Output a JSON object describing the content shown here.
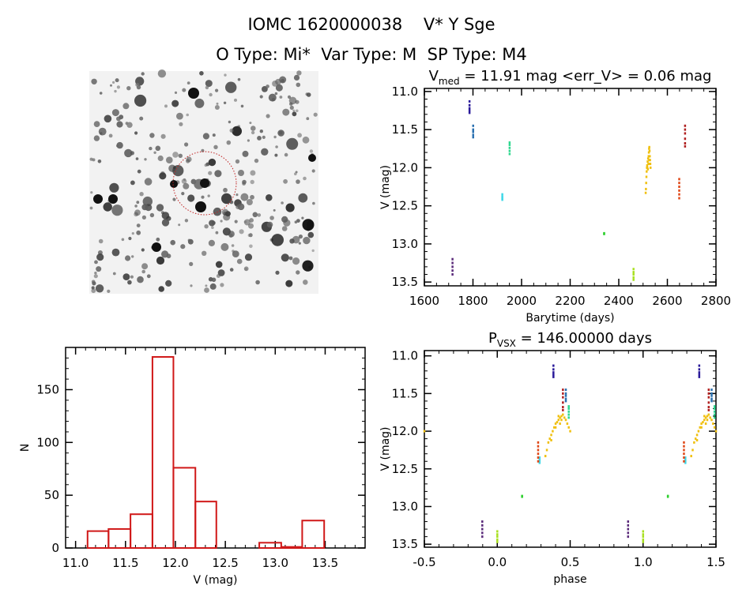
{
  "header": {
    "title": "IOMC 1620000038    V* Y Sge",
    "subtitle": "O Type: Mi*  Var Type: M  SP Type: M4"
  },
  "image_panel": {
    "description_visible": "greyscale star field finder chart with red dashed circle around target",
    "circle_color": "#c02020"
  },
  "chart_data": [
    {
      "type": "scatter",
      "title_main": "V",
      "title_sub": "med",
      "title_rest": " = 11.91 mag <err_V> = 0.06 mag",
      "xlabel": "Barytime (days)",
      "ylabel": "V (mag)",
      "xlim": [
        1600,
        2800
      ],
      "ylim": [
        13.55,
        10.96
      ],
      "y_reversed": true,
      "xticks": [
        1600,
        1800,
        2000,
        2200,
        2400,
        2600,
        2800
      ],
      "xtick_labels": [
        "1600",
        "1800",
        "2000",
        "2200",
        "2400",
        "2600",
        "2800"
      ],
      "yticks": [
        11.0,
        11.5,
        12.0,
        12.5,
        13.0,
        13.5
      ],
      "ytick_labels": [
        "11.0",
        "11.5",
        "12.0",
        "12.5",
        "13.0",
        "13.5"
      ],
      "grid": false,
      "series": [
        {
          "color": "#5a2a7a",
          "points": [
            [
              1715,
              13.2
            ],
            [
              1715,
              13.25
            ],
            [
              1715,
              13.3
            ],
            [
              1715,
              13.35
            ],
            [
              1715,
              13.4
            ]
          ]
        },
        {
          "color": "#2a1a9a",
          "points": [
            [
              1785,
              11.13
            ],
            [
              1785,
              11.18
            ],
            [
              1785,
              11.22
            ],
            [
              1785,
              11.25
            ],
            [
              1785,
              11.28
            ]
          ]
        },
        {
          "color": "#2a70b0",
          "points": [
            [
              1800,
              11.45
            ],
            [
              1800,
              11.5
            ],
            [
              1800,
              11.53
            ],
            [
              1800,
              11.57
            ],
            [
              1800,
              11.6
            ]
          ]
        },
        {
          "color": "#40d8e8",
          "points": [
            [
              1920,
              12.35
            ],
            [
              1920,
              12.38
            ],
            [
              1920,
              12.4
            ],
            [
              1920,
              12.42
            ]
          ]
        },
        {
          "color": "#30d890",
          "points": [
            [
              1950,
              11.67
            ],
            [
              1950,
              11.7
            ],
            [
              1950,
              11.74
            ],
            [
              1950,
              11.78
            ],
            [
              1950,
              11.82
            ]
          ]
        },
        {
          "color": "#30d030",
          "points": [
            [
              2339,
              12.86
            ],
            [
              2339,
              12.87
            ]
          ]
        },
        {
          "color": "#a8e020",
          "points": [
            [
              2460,
              13.33
            ],
            [
              2460,
              13.37
            ],
            [
              2460,
              13.4
            ],
            [
              2460,
              13.44
            ],
            [
              2460,
              13.47
            ]
          ]
        },
        {
          "color": "#f0c010",
          "points": [
            [
              2510,
              12.33
            ],
            [
              2511,
              12.28
            ],
            [
              2512,
              12.2
            ],
            [
              2513,
              12.12
            ],
            [
              2514,
              12.05
            ],
            [
              2515,
              12.0
            ],
            [
              2516,
              11.97
            ],
            [
              2518,
              11.92
            ],
            [
              2520,
              11.88
            ],
            [
              2522,
              11.85
            ],
            [
              2523,
              11.8
            ],
            [
              2524,
              11.75
            ],
            [
              2525,
              11.73
            ],
            [
              2526,
              11.78
            ],
            [
              2527,
              11.85
            ],
            [
              2528,
              11.9
            ],
            [
              2529,
              11.95
            ],
            [
              2530,
              12.0
            ],
            [
              2519,
              12.02
            ],
            [
              2521,
              11.95
            ],
            [
              2524,
              11.9
            ],
            [
              2526,
              11.95
            ],
            [
              2517,
              12.0
            ]
          ]
        },
        {
          "color": "#e04818",
          "points": [
            [
              2648,
              12.15
            ],
            [
              2648,
              12.2
            ],
            [
              2648,
              12.25
            ],
            [
              2648,
              12.3
            ],
            [
              2648,
              12.35
            ],
            [
              2648,
              12.4
            ]
          ]
        },
        {
          "color": "#b02020",
          "points": [
            [
              2672,
              11.45
            ],
            [
              2672,
              11.5
            ],
            [
              2672,
              11.55
            ],
            [
              2672,
              11.62
            ],
            [
              2672,
              11.68
            ],
            [
              2672,
              11.72
            ]
          ]
        }
      ]
    },
    {
      "type": "scatter",
      "title_main": "P",
      "title_sub": "VSX",
      "title_rest": " = 146.00000 days",
      "xlabel": "phase",
      "ylabel": "V (mag)",
      "xlim": [
        -0.5,
        1.5
      ],
      "ylim": [
        13.54,
        10.93
      ],
      "y_reversed": true,
      "xticks": [
        -0.5,
        0.0,
        0.5,
        1.0,
        1.5
      ],
      "xtick_labels": [
        "-0.5",
        "0.0",
        "0.5",
        "1.0",
        "1.5"
      ],
      "yticks": [
        11.0,
        11.5,
        12.0,
        12.5,
        13.0,
        13.5
      ],
      "ytick_labels": [
        "11.0",
        "11.5",
        "12.0",
        "12.5",
        "13.0",
        "13.5"
      ],
      "grid": false,
      "phase_repeated": true,
      "series": [
        {
          "color": "#5a2a7a",
          "points": [
            [
              0.897,
              13.2
            ],
            [
              0.897,
              13.25
            ],
            [
              0.897,
              13.3
            ],
            [
              0.897,
              13.35
            ],
            [
              0.897,
              13.4
            ]
          ]
        },
        {
          "color": "#2a1a9a",
          "points": [
            [
              0.385,
              11.13
            ],
            [
              0.385,
              11.18
            ],
            [
              0.385,
              11.22
            ],
            [
              0.385,
              11.25
            ],
            [
              0.385,
              11.28
            ]
          ]
        },
        {
          "color": "#2a70b0",
          "points": [
            [
              0.47,
              11.45
            ],
            [
              0.47,
              11.5
            ],
            [
              0.47,
              11.53
            ],
            [
              0.47,
              11.57
            ],
            [
              0.47,
              11.6
            ]
          ]
        },
        {
          "color": "#40d8e8",
          "points": [
            [
              0.29,
              12.35
            ],
            [
              0.29,
              12.38
            ],
            [
              0.29,
              12.4
            ],
            [
              0.29,
              12.42
            ]
          ]
        },
        {
          "color": "#30d890",
          "points": [
            [
              0.49,
              11.67
            ],
            [
              0.49,
              11.7
            ],
            [
              0.49,
              11.74
            ],
            [
              0.49,
              11.78
            ],
            [
              0.49,
              11.82
            ]
          ]
        },
        {
          "color": "#30d030",
          "points": [
            [
              0.17,
              12.86
            ],
            [
              0.17,
              12.87
            ]
          ]
        },
        {
          "color": "#a8e020",
          "points": [
            [
              0.0,
              13.33
            ],
            [
              0.0,
              13.37
            ],
            [
              0.0,
              13.4
            ],
            [
              0.0,
              13.44
            ],
            [
              0.0,
              13.47
            ]
          ]
        },
        {
          "color": "#f0c010",
          "points": [
            [
              0.33,
              12.33
            ],
            [
              0.34,
              12.25
            ],
            [
              0.35,
              12.15
            ],
            [
              0.36,
              12.1
            ],
            [
              0.37,
              12.05
            ],
            [
              0.38,
              12.0
            ],
            [
              0.39,
              11.95
            ],
            [
              0.4,
              11.9
            ],
            [
              0.41,
              11.88
            ],
            [
              0.42,
              11.85
            ],
            [
              0.43,
              11.82
            ],
            [
              0.44,
              11.8
            ],
            [
              0.45,
              11.78
            ],
            [
              0.46,
              11.82
            ],
            [
              0.47,
              11.85
            ],
            [
              0.48,
              11.9
            ],
            [
              0.49,
              11.95
            ],
            [
              0.5,
              12.0
            ],
            [
              0.4,
              11.95
            ],
            [
              0.43,
              11.9
            ],
            [
              0.44,
              11.85
            ],
            [
              0.37,
              12.12
            ],
            [
              0.42,
              11.8
            ]
          ]
        },
        {
          "color": "#e04818",
          "points": [
            [
              0.28,
              12.15
            ],
            [
              0.28,
              12.2
            ],
            [
              0.28,
              12.25
            ],
            [
              0.28,
              12.3
            ],
            [
              0.28,
              12.35
            ],
            [
              0.28,
              12.4
            ]
          ]
        },
        {
          "color": "#b02020",
          "points": [
            [
              0.45,
              11.45
            ],
            [
              0.45,
              11.5
            ],
            [
              0.45,
              11.55
            ],
            [
              0.45,
              11.62
            ],
            [
              0.45,
              11.68
            ],
            [
              0.45,
              11.72
            ]
          ]
        }
      ]
    },
    {
      "type": "bar",
      "subtype": "histogram",
      "xlabel": "V (mag)",
      "ylabel": "N",
      "xlim": [
        10.9,
        13.9
      ],
      "ylim": [
        0,
        190
      ],
      "xticks": [
        11.0,
        11.5,
        12.0,
        12.5,
        13.0,
        13.5
      ],
      "xtick_labels": [
        "11.0",
        "11.5",
        "12.0",
        "12.5",
        "13.0",
        "13.5"
      ],
      "yticks": [
        0,
        50,
        100,
        150
      ],
      "ytick_labels": [
        "0",
        "50",
        "100",
        "150"
      ],
      "bin_edges": [
        11.12,
        11.33,
        11.55,
        11.77,
        11.98,
        12.2,
        12.41,
        12.63,
        12.84,
        13.06,
        13.27,
        13.49
      ],
      "values": [
        16,
        18,
        32,
        181,
        76,
        44,
        0,
        0,
        5,
        1,
        26
      ],
      "color": "#d01818",
      "grid": false
    }
  ]
}
